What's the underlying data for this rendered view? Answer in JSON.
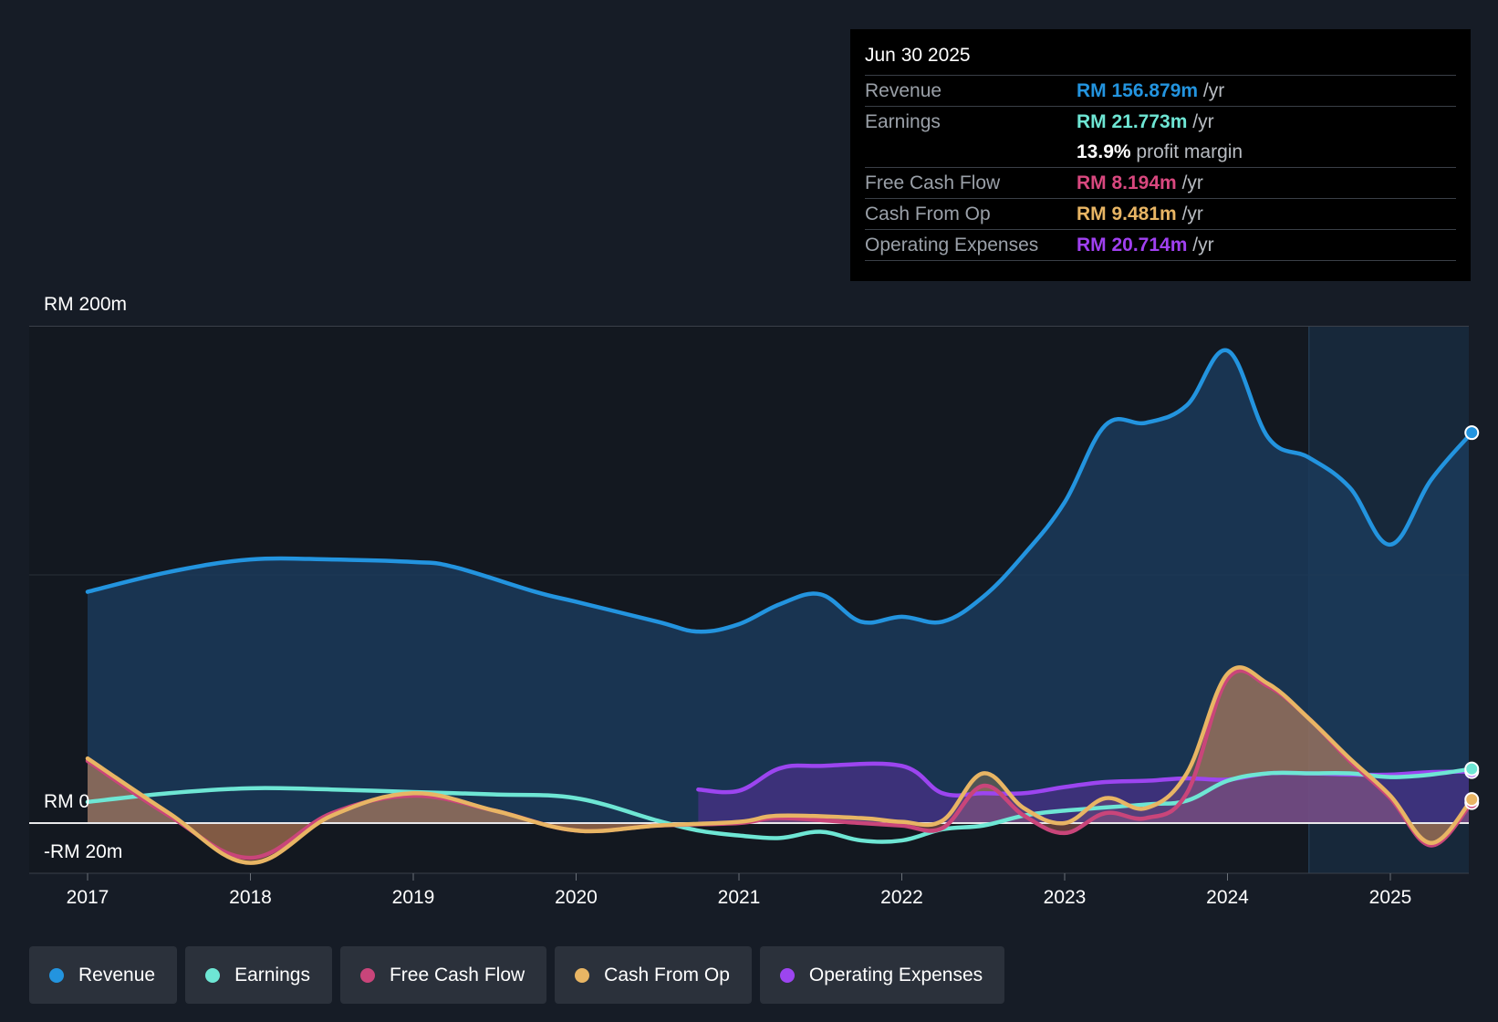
{
  "tooltip": {
    "date": "Jun 30 2025",
    "rows": [
      {
        "label": "Revenue",
        "value": "RM 156.879m",
        "unit": "/yr",
        "color": "#2394df"
      },
      {
        "label": "Earnings",
        "value": "RM 21.773m",
        "unit": "/yr",
        "color": "#6ee6d4"
      },
      {
        "label": "",
        "value": "13.9%",
        "unit": "profit margin",
        "color": "#ffffff"
      },
      {
        "label": "Free Cash Flow",
        "value": "RM 8.194m",
        "unit": "/yr",
        "color": "#d9487f"
      },
      {
        "label": "Cash From Op",
        "value": "RM 9.481m",
        "unit": "/yr",
        "color": "#e8b564"
      },
      {
        "label": "Operating Expenses",
        "value": "RM 20.714m",
        "unit": "/yr",
        "color": "#a040f0"
      }
    ]
  },
  "legend": [
    {
      "label": "Revenue",
      "color": "#2394df"
    },
    {
      "label": "Earnings",
      "color": "#6ee6d4"
    },
    {
      "label": "Free Cash Flow",
      "color": "#c9457a"
    },
    {
      "label": "Cash From Op",
      "color": "#e8b564"
    },
    {
      "label": "Operating Expenses",
      "color": "#9c45f0"
    }
  ],
  "chart_data": {
    "type": "line",
    "ylabel_top": "RM 200m",
    "ylabel_zero": "RM 0",
    "ylabel_bottom": "-RM 20m",
    "ylim": [
      -20,
      200
    ],
    "xlim": [
      2017,
      2025.5
    ],
    "x_ticks": [
      "2017",
      "2018",
      "2019",
      "2020",
      "2021",
      "2022",
      "2023",
      "2024",
      "2025"
    ],
    "highlight_start": 2024.5,
    "series": [
      {
        "name": "Revenue",
        "color": "#2394df",
        "fill": true,
        "points": [
          [
            2017,
            93
          ],
          [
            2017.5,
            101
          ],
          [
            2018,
            106
          ],
          [
            2018.5,
            106
          ],
          [
            2019,
            105
          ],
          [
            2019.25,
            103
          ],
          [
            2019.75,
            93
          ],
          [
            2020,
            89
          ],
          [
            2020.5,
            81
          ],
          [
            2020.75,
            77
          ],
          [
            2021,
            80
          ],
          [
            2021.25,
            88
          ],
          [
            2021.5,
            92
          ],
          [
            2021.75,
            81
          ],
          [
            2022,
            83
          ],
          [
            2022.25,
            81
          ],
          [
            2022.5,
            91
          ],
          [
            2022.75,
            108
          ],
          [
            2023,
            129
          ],
          [
            2023.25,
            160
          ],
          [
            2023.5,
            161
          ],
          [
            2023.75,
            168
          ],
          [
            2024,
            190
          ],
          [
            2024.25,
            155
          ],
          [
            2024.5,
            147
          ],
          [
            2024.75,
            135
          ],
          [
            2025,
            112
          ],
          [
            2025.25,
            138
          ],
          [
            2025.5,
            157
          ]
        ]
      },
      {
        "name": "Earnings",
        "color": "#6ee6d4",
        "fill": false,
        "points": [
          [
            2017,
            8.5
          ],
          [
            2017.5,
            12
          ],
          [
            2018,
            14
          ],
          [
            2018.5,
            13.5
          ],
          [
            2019,
            12.5
          ],
          [
            2019.5,
            11.5
          ],
          [
            2020,
            10
          ],
          [
            2020.5,
            1
          ],
          [
            2020.75,
            -3
          ],
          [
            2021,
            -5
          ],
          [
            2021.25,
            -6
          ],
          [
            2021.5,
            -3.5
          ],
          [
            2021.75,
            -7
          ],
          [
            2022,
            -7
          ],
          [
            2022.25,
            -2.5
          ],
          [
            2022.5,
            -1
          ],
          [
            2022.75,
            3
          ],
          [
            2023,
            5
          ],
          [
            2023.5,
            7.5
          ],
          [
            2023.75,
            9
          ],
          [
            2024,
            17
          ],
          [
            2024.25,
            20
          ],
          [
            2024.5,
            20
          ],
          [
            2024.75,
            20
          ],
          [
            2025,
            18.5
          ],
          [
            2025.25,
            19.5
          ],
          [
            2025.5,
            21.8
          ]
        ]
      },
      {
        "name": "Free Cash Flow",
        "color": "#c9457a",
        "fill": true,
        "fill_color": "#e8826e",
        "points": [
          [
            2017,
            25
          ],
          [
            2017.5,
            3
          ],
          [
            2018,
            -14
          ],
          [
            2018.5,
            4
          ],
          [
            2019,
            11
          ],
          [
            2019.5,
            5
          ],
          [
            2020,
            -3
          ],
          [
            2020.5,
            -1
          ],
          [
            2021,
            0
          ],
          [
            2021.25,
            2
          ],
          [
            2021.75,
            0
          ],
          [
            2022,
            -1
          ],
          [
            2022.25,
            -2
          ],
          [
            2022.5,
            15
          ],
          [
            2022.75,
            3
          ],
          [
            2023,
            -4
          ],
          [
            2023.25,
            4
          ],
          [
            2023.5,
            2
          ],
          [
            2023.75,
            12
          ],
          [
            2024,
            58
          ],
          [
            2024.25,
            55
          ],
          [
            2024.5,
            42
          ],
          [
            2024.75,
            25
          ],
          [
            2025,
            10
          ],
          [
            2025.25,
            -9
          ],
          [
            2025.5,
            8.2
          ]
        ]
      },
      {
        "name": "Cash From Op",
        "color": "#e8b564",
        "fill": true,
        "fill_color": "#d4a35c",
        "points": [
          [
            2017,
            26
          ],
          [
            2017.5,
            4
          ],
          [
            2018,
            -16
          ],
          [
            2018.5,
            3
          ],
          [
            2019,
            12
          ],
          [
            2019.5,
            5
          ],
          [
            2020,
            -3
          ],
          [
            2020.5,
            -1
          ],
          [
            2021,
            0.5
          ],
          [
            2021.25,
            3
          ],
          [
            2021.75,
            2
          ],
          [
            2022,
            0.5
          ],
          [
            2022.25,
            1
          ],
          [
            2022.5,
            20
          ],
          [
            2022.75,
            6
          ],
          [
            2023,
            0
          ],
          [
            2023.25,
            10
          ],
          [
            2023.5,
            6
          ],
          [
            2023.75,
            20
          ],
          [
            2024,
            60
          ],
          [
            2024.25,
            56
          ],
          [
            2024.5,
            42
          ],
          [
            2024.75,
            26
          ],
          [
            2025,
            11
          ],
          [
            2025.25,
            -8
          ],
          [
            2025.5,
            9.5
          ]
        ]
      },
      {
        "name": "Operating Expenses",
        "color": "#9c45f0",
        "fill": true,
        "fill_color": "#5a2f9a",
        "points": [
          [
            2020.75,
            13.5
          ],
          [
            2021,
            13
          ],
          [
            2021.25,
            22
          ],
          [
            2021.5,
            23
          ],
          [
            2022,
            23
          ],
          [
            2022.25,
            12
          ],
          [
            2022.5,
            12
          ],
          [
            2022.75,
            12
          ],
          [
            2023,
            14.5
          ],
          [
            2023.25,
            16.5
          ],
          [
            2023.5,
            17
          ],
          [
            2023.75,
            18
          ],
          [
            2024,
            17.5
          ],
          [
            2024.25,
            20
          ],
          [
            2024.5,
            20
          ],
          [
            2024.75,
            19.5
          ],
          [
            2025,
            19.5
          ],
          [
            2025.25,
            20.5
          ],
          [
            2025.5,
            20.7
          ]
        ]
      }
    ]
  }
}
